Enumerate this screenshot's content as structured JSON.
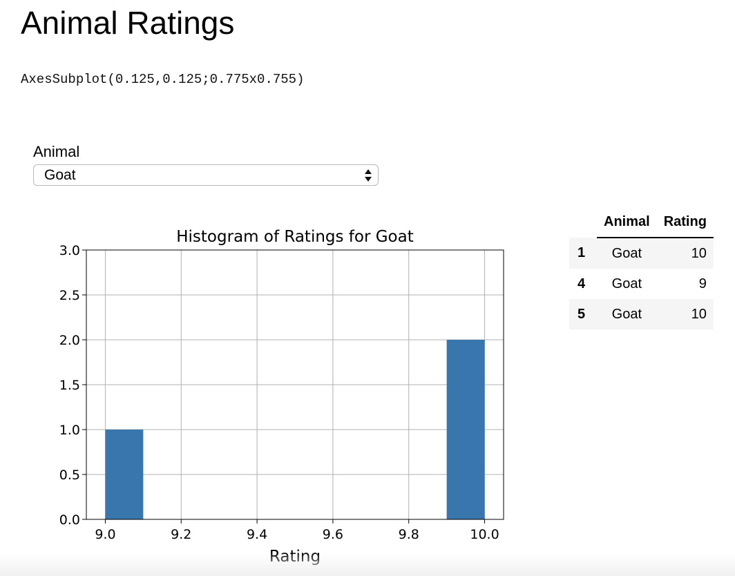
{
  "page": {
    "title": "Animal Ratings",
    "repr_output": "AxesSubplot(0.125,0.125;0.775x0.755)"
  },
  "widget": {
    "label": "Animal",
    "selected": "Goat"
  },
  "chart_data": {
    "type": "bar",
    "title": "Histogram of Ratings for Goat",
    "xlabel": "Rating",
    "ylabel": "",
    "xlim": [
      8.95,
      10.05
    ],
    "ylim": [
      0,
      3.0
    ],
    "x_ticks": [
      9.0,
      9.2,
      9.4,
      9.6,
      9.8,
      10.0
    ],
    "x_tick_labels": [
      "9.0",
      "9.2",
      "9.4",
      "9.6",
      "9.8",
      "10.0"
    ],
    "y_ticks": [
      0.0,
      0.5,
      1.0,
      1.5,
      2.0,
      2.5,
      3.0
    ],
    "y_tick_labels": [
      "0.0",
      "0.5",
      "1.0",
      "1.5",
      "2.0",
      "2.5",
      "3.0"
    ],
    "grid": true,
    "bar_color": "#3a76ae",
    "bins": [
      {
        "start": 9.0,
        "end": 9.1,
        "count": 1
      },
      {
        "start": 9.9,
        "end": 10.0,
        "count": 2
      }
    ]
  },
  "table": {
    "columns": [
      "Animal",
      "Rating"
    ],
    "rows": [
      {
        "index": "1",
        "animal": "Goat",
        "rating": "10"
      },
      {
        "index": "4",
        "animal": "Goat",
        "rating": "9"
      },
      {
        "index": "5",
        "animal": "Goat",
        "rating": "10"
      }
    ]
  }
}
